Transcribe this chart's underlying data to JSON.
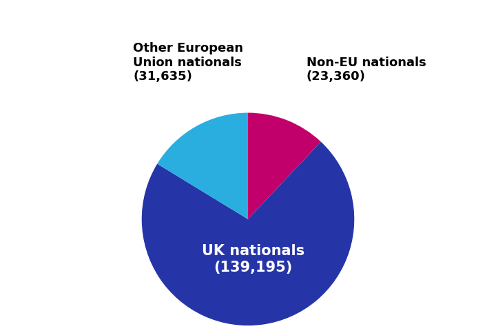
{
  "segments": [
    {
      "label": "UK nationals",
      "sublabel": "(139,195)",
      "value": 139195,
      "color": "#2535a8"
    },
    {
      "label": "Other European\nUnion nationals",
      "sublabel": "(31,635)",
      "value": 31635,
      "color": "#29aedf"
    },
    {
      "label": "Non-EU nationals",
      "sublabel": "(23,360)",
      "value": 23360,
      "color": "#c2006b"
    }
  ],
  "background_color": "#ffffff",
  "inner_label_color": "#ffffff",
  "outer_label_color": "#000000",
  "inner_label_fontsize": 15,
  "outer_label_fontsize": 13,
  "inner_label_fontweight": "bold",
  "outer_label_fontweight": "bold"
}
